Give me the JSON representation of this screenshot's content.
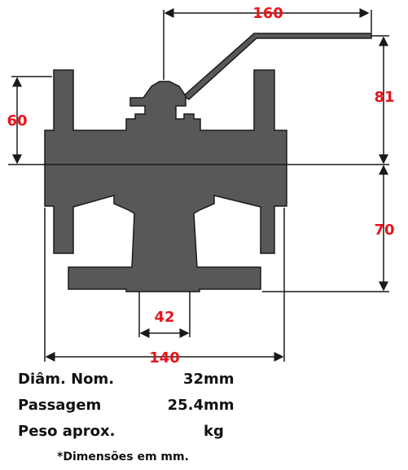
{
  "dimensions": {
    "handle_length": "160",
    "height_top": "81",
    "flange_top_height": "60",
    "height_bottom": "70",
    "base_width": "42",
    "face_to_face": "140"
  },
  "specs": [
    {
      "label": "Diâm. Nom.",
      "value": "32",
      "unit": "mm"
    },
    {
      "label": "Passagem",
      "value": "25.4",
      "unit": "mm"
    },
    {
      "label": "Peso aprox.",
      "value": "",
      "unit": "kg"
    }
  ],
  "note": "*Dimensões em mm.",
  "colors": {
    "body": "#58585a",
    "outline": "#1a1a1a",
    "dimension_text": "#e8141b"
  }
}
